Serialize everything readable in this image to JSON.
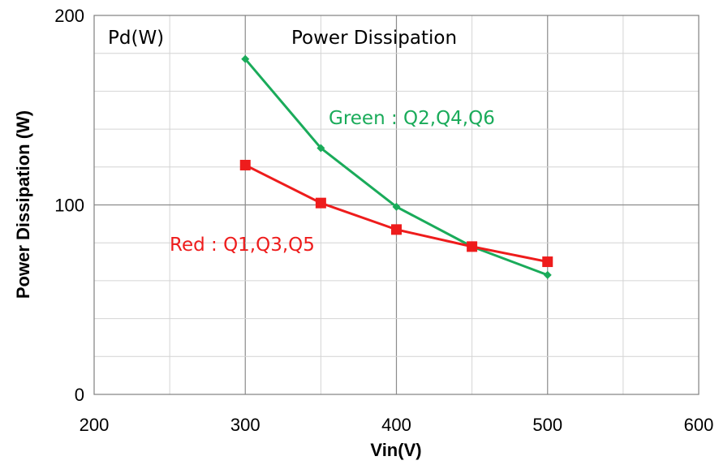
{
  "chart_data": {
    "type": "line",
    "title": "Power Dissipation",
    "xlabel": "Vin(V)",
    "ylabel": "Power Dissipation (W)",
    "unit_label": "Pd(W)",
    "xlim": [
      200,
      600
    ],
    "ylim": [
      0,
      200
    ],
    "x_ticks": [
      "200",
      "300",
      "400",
      "500",
      "600"
    ],
    "y_ticks": [
      "0",
      "100",
      "200"
    ],
    "grid": true,
    "series": [
      {
        "name": "Green : Q2,Q4,Q6",
        "color": "#1aab5a",
        "marker": "diamond",
        "x": [
          300,
          350,
          400,
          450,
          500
        ],
        "y": [
          177,
          130,
          99,
          78,
          63
        ]
      },
      {
        "name": "Red : Q1,Q3,Q5",
        "color": "#ee1c1c",
        "marker": "square",
        "x": [
          300,
          350,
          400,
          450,
          500
        ],
        "y": [
          121,
          101,
          87,
          78,
          70
        ]
      }
    ]
  }
}
